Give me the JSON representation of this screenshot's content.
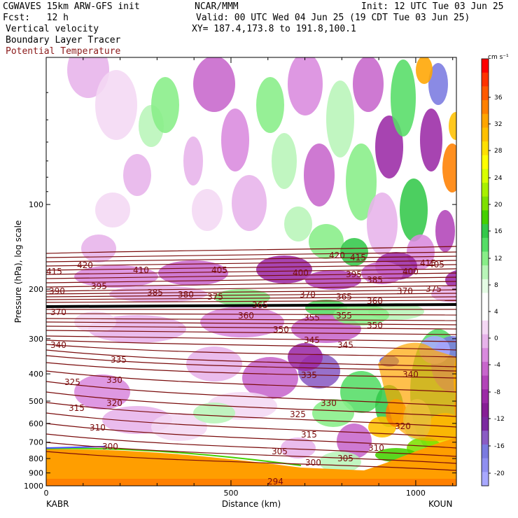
{
  "header": {
    "model": "CGWAVES 15km ARW-GFS init",
    "org": "NCAR/MMM",
    "init": "Init: 12 UTC Tue 03 Jun 25",
    "fcst": "Fcst:   12 h",
    "valid": "Valid: 00 UTC Wed 04 Jun 25 (19 CDT Tue 03 Jun 25)",
    "field1": "Vertical velocity",
    "field2": "Boundary Layer Tracer",
    "xy": "XY= 187.4,173.8 to 191.8,100.1",
    "field3": "Potential Temperature"
  },
  "chart_data": {
    "type": "heatmap",
    "title": "",
    "xlabel": "Distance (km)",
    "ylabel": "Pressure (hPa), log scale",
    "x_ticks": [
      "0",
      "500",
      "1000"
    ],
    "xlim": [
      0,
      1110
    ],
    "y_ticks": [
      "100",
      "200",
      "300",
      "400",
      "500",
      "600",
      "700",
      "800",
      "900",
      "1000"
    ],
    "ylim": [
      1000,
      30
    ],
    "y_scale": "log",
    "endpoints": {
      "left": "KABR",
      "right": "KOUN"
    },
    "colorbar": {
      "unit": "cm s⁻¹",
      "ticks": [
        "36",
        "32",
        "28",
        "24",
        "20",
        "16",
        "12",
        "8",
        "4",
        "0",
        "-4",
        "-8",
        "-12",
        "-16",
        "-20"
      ],
      "colors": [
        "#ff0000",
        "#ff3300",
        "#ff5a00",
        "#ff8000",
        "#ffa500",
        "#ffc000",
        "#ffe000",
        "#ffff00",
        "#d8ff00",
        "#a8f000",
        "#7ee000",
        "#44d000",
        "#33c84a",
        "#55dd66",
        "#88ee88",
        "#b8f5b8",
        "#e4fbe4",
        "#ffffff",
        "#ffffff",
        "#f4d8f4",
        "#e7b3ea",
        "#d98ade",
        "#c766cc",
        "#b244b8",
        "#9b2aa6",
        "#861e95",
        "#7b2aa0",
        "#8a5cc4",
        "#7a7ae0",
        "#8f8ff0",
        "#a8a8ff"
      ]
    },
    "theta_contours": [
      {
        "label": "415",
        "value": 415
      },
      {
        "label": "420",
        "value": 420
      },
      {
        "label": "410",
        "value": 410
      },
      {
        "label": "405",
        "value": 405
      },
      {
        "label": "400",
        "value": 400
      },
      {
        "label": "395",
        "value": 395
      },
      {
        "label": "390",
        "value": 390
      },
      {
        "label": "385",
        "value": 385
      },
      {
        "label": "380",
        "value": 380
      },
      {
        "label": "375",
        "value": 375
      },
      {
        "label": "370",
        "value": 370
      },
      {
        "label": "365",
        "value": 365
      },
      {
        "label": "360",
        "value": 360
      },
      {
        "label": "355",
        "value": 355
      },
      {
        "label": "350",
        "value": 350
      },
      {
        "label": "345",
        "value": 345
      },
      {
        "label": "340",
        "value": 340
      },
      {
        "label": "335",
        "value": 335
      },
      {
        "label": "330",
        "value": 330
      },
      {
        "label": "325",
        "value": 325
      },
      {
        "label": "320",
        "value": 320
      },
      {
        "label": "315",
        "value": 315
      },
      {
        "label": "310",
        "value": 310
      },
      {
        "label": "305",
        "value": 305
      },
      {
        "label": "300",
        "value": 300
      },
      {
        "label": "294",
        "value": 294
      }
    ]
  }
}
